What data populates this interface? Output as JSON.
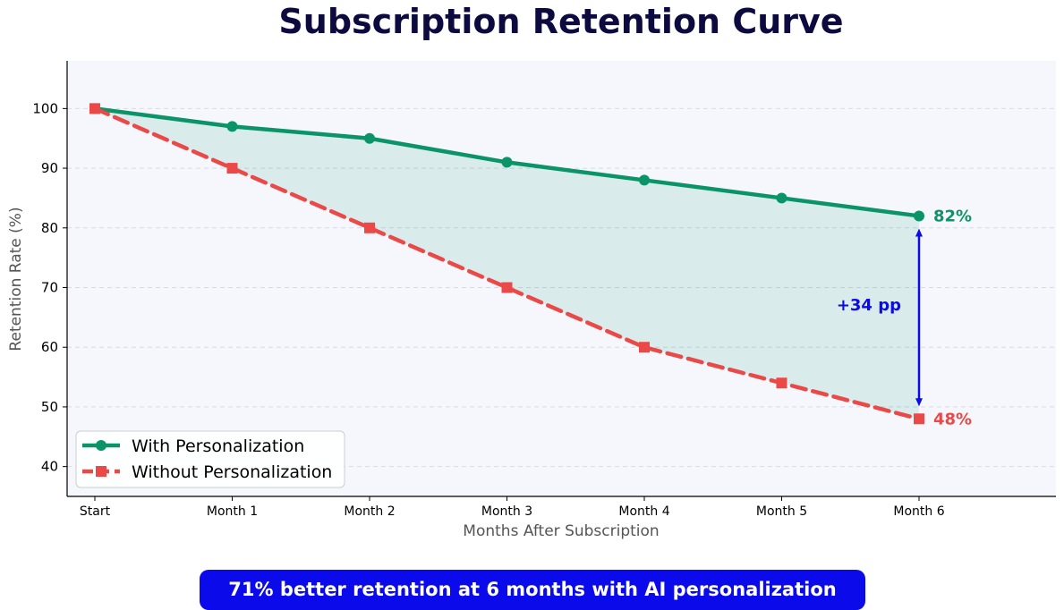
{
  "chart_data": {
    "type": "line",
    "title": "Subscription Retention Curve",
    "xlabel": "Months After Subscription",
    "ylabel": "Retention Rate (%)",
    "categories": [
      "Start",
      "Month 1",
      "Month 2",
      "Month 3",
      "Month 4",
      "Month 5",
      "Month 6"
    ],
    "ylim": [
      35,
      108
    ],
    "yticks": [
      40,
      50,
      60,
      70,
      80,
      90,
      100
    ],
    "grid": true,
    "legend_position": "lower-left",
    "series": [
      {
        "name": "With Personalization",
        "values": [
          100,
          97,
          95,
          91,
          88,
          85,
          82
        ],
        "color": "#0a9467",
        "line_style": "solid",
        "marker": "circle",
        "end_label": "82%"
      },
      {
        "name": "Without Personalization",
        "values": [
          100,
          90,
          80,
          70,
          60,
          54,
          48
        ],
        "color": "#eb4848",
        "line_style": "dashed",
        "marker": "square",
        "end_label": "48%"
      }
    ],
    "fill_between": {
      "color": "#0a9467"
    },
    "gap_annotation": {
      "text": "+34 pp",
      "color": "#0a0aea"
    },
    "plot_background": "#f6f7fd"
  },
  "callout": {
    "text": "71% better retention at 6 months with AI personalization",
    "background": "#0a0aea"
  }
}
